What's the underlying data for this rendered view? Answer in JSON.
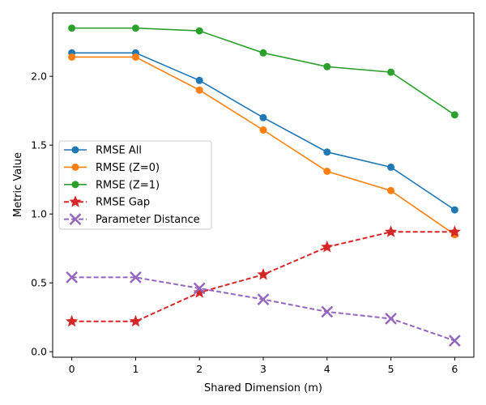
{
  "chart_data": {
    "type": "line",
    "title": "",
    "xlabel": "Shared Dimension (m)",
    "ylabel": "Metric Value",
    "x": [
      0,
      1,
      2,
      3,
      4,
      5,
      6
    ],
    "xlim": [
      -0.3,
      6.3
    ],
    "ylim": [
      -0.04,
      2.46
    ],
    "xticks": [
      "0",
      "1",
      "2",
      "3",
      "4",
      "5",
      "6"
    ],
    "yticks": [
      "0.0",
      "0.5",
      "1.0",
      "1.5",
      "2.0"
    ],
    "ytick_values": [
      0.0,
      0.5,
      1.0,
      1.5,
      2.0
    ],
    "legend_position": "center-left",
    "series": [
      {
        "name": "RMSE All",
        "values": [
          2.17,
          2.17,
          1.97,
          1.7,
          1.45,
          1.34,
          1.03
        ],
        "color": "#1f77b4",
        "marker": "circle",
        "linestyle": "solid"
      },
      {
        "name": "RMSE (Z=0)",
        "values": [
          2.14,
          2.14,
          1.9,
          1.61,
          1.31,
          1.17,
          0.85
        ],
        "color": "#ff7f0e",
        "marker": "circle",
        "linestyle": "solid"
      },
      {
        "name": "RMSE (Z=1)",
        "values": [
          2.35,
          2.35,
          2.33,
          2.17,
          2.07,
          2.03,
          1.72
        ],
        "color": "#2ca02c",
        "marker": "circle",
        "linestyle": "solid"
      },
      {
        "name": "RMSE Gap",
        "values": [
          0.22,
          0.22,
          0.43,
          0.56,
          0.76,
          0.87,
          0.87
        ],
        "color": "#d62728",
        "marker": "star",
        "linestyle": "dashed"
      },
      {
        "name": "Parameter Distance",
        "values": [
          0.54,
          0.54,
          0.46,
          0.38,
          0.29,
          0.24,
          0.08
        ],
        "color": "#9467bd",
        "marker": "x",
        "linestyle": "dashed"
      }
    ]
  }
}
